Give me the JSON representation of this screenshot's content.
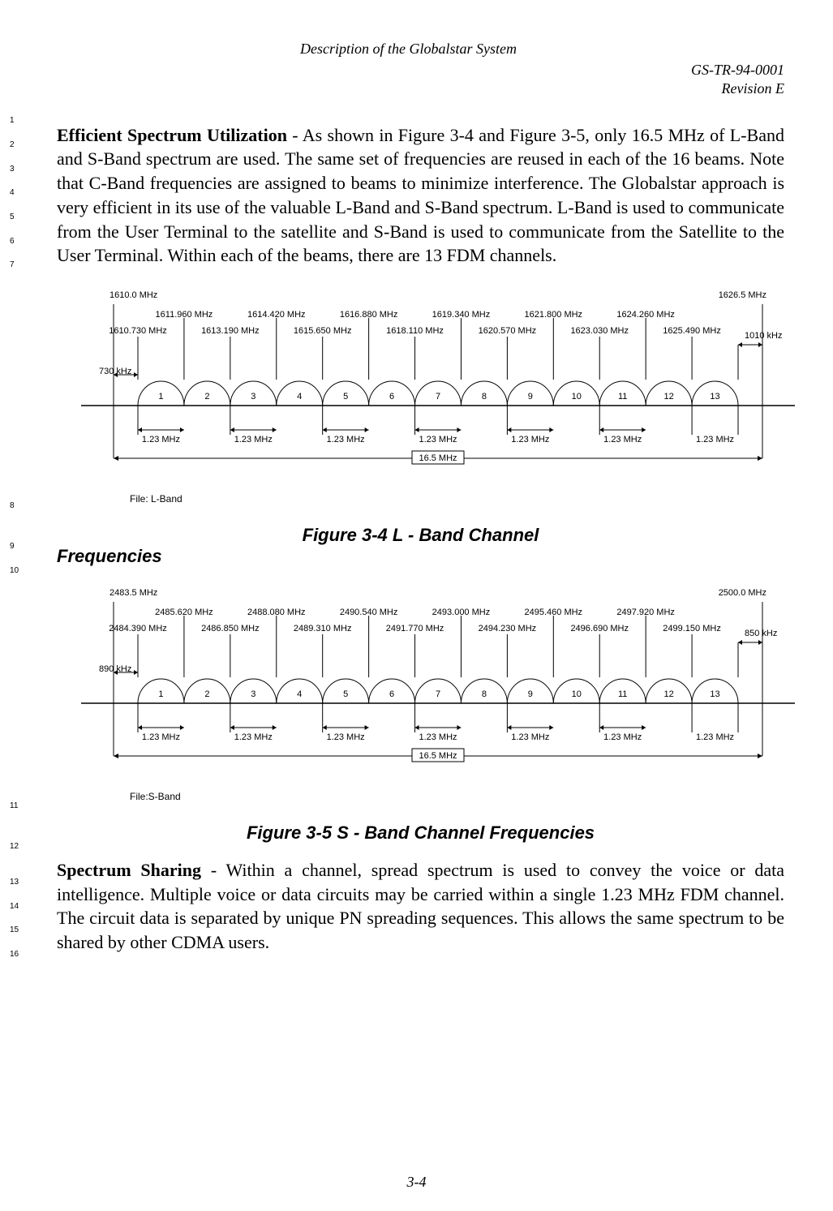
{
  "header": {
    "doc_title": "Description of the Globalstar System",
    "doc_id": "GS-TR-94-0001",
    "revision": "Revision E"
  },
  "line_numbers": {
    "para1": [
      "1",
      "2",
      "3",
      "4",
      "5",
      "6",
      "7"
    ],
    "fig1_end": "8",
    "fig1_caption": "9",
    "freq_line": "10",
    "fig2_end": "11",
    "fig2_caption": "12",
    "para2": [
      "13",
      "14",
      "15",
      "16"
    ]
  },
  "para1": {
    "bold": "Efficient Spectrum Utilization",
    "text": " - As shown in Figure 3-4 and Figure 3-5, only 16.5 MHz of L-Band and S-Band spectrum are used.  The same set of frequencies are reused in each of the 16 beams.  Note that C-Band frequencies are assigned to beams to minimize interference.  The Globalstar approach is very efficient in its use of the valuable L-Band and S-Band spectrum.  L-Band is used to communicate from the User Terminal to the satellite and S-Band is used to communicate from the Satellite to the User Terminal.  Within each of the beams, there are 13 FDM channels."
  },
  "figure1": {
    "caption_prefix": "Figure 3-4 L - Band Channel",
    "freq_suffix": "Frequencies",
    "file_label": "File: L-Band",
    "band_start": "1610.0 MHz",
    "band_end": "1626.5 MHz",
    "guard_left": "730 kHz",
    "guard_right": "1010 kHz",
    "total_width": "16.5 MHz",
    "channel_width": "1.23 MHz",
    "channels": [
      "1",
      "2",
      "3",
      "4",
      "5",
      "6",
      "7",
      "8",
      "9",
      "10",
      "11",
      "12",
      "13"
    ],
    "centers": [
      "1611.960 MHz",
      "1614.420 MHz",
      "1616.880 MHz",
      "1619.340 MHz",
      "1621.800 MHz",
      "1624.260 MHz"
    ],
    "edges": [
      "1610.730 MHz",
      "1613.190 MHz",
      "1615.650 MHz",
      "1618.110 MHz",
      "1620.570 MHz",
      "1623.030 MHz",
      "1625.490 MHz"
    ],
    "pair_labels": [
      "1.23 MHz",
      "1.23 MHz",
      "1.23 MHz",
      "1.23 MHz",
      "1.23 MHz",
      "1.23 MHz",
      "1.23 MHz"
    ]
  },
  "figure2": {
    "caption": "Figure 3-5 S - Band Channel Frequencies",
    "file_label": "File:S-Band",
    "band_start": "2483.5 MHz",
    "band_end": "2500.0 MHz",
    "guard_left": "890 kHz",
    "guard_right": "850 kHz",
    "total_width": "16.5 MHz",
    "channel_width": "1.23 MHz",
    "channels": [
      "1",
      "2",
      "3",
      "4",
      "5",
      "6",
      "7",
      "8",
      "9",
      "10",
      "11",
      "12",
      "13"
    ],
    "centers": [
      "2485.620 MHz",
      "2488.080 MHz",
      "2490.540 MHz",
      "2493.000 MHz",
      "2495.460 MHz",
      "2497.920 MHz"
    ],
    "edges": [
      "2484.390 MHz",
      "2486.850 MHz",
      "2489.310 MHz",
      "2491.770 MHz",
      "2494.230 MHz",
      "2496.690 MHz",
      "2499.150 MHz"
    ],
    "pair_labels": [
      "1.23 MHz",
      "1.23 MHz",
      "1.23 MHz",
      "1.23 MHz",
      "1.23 MHz",
      "1.23 MHz",
      "1.23 MHz"
    ]
  },
  "para2": {
    "bold": "Spectrum Sharing",
    "text": " - Within a channel, spread spectrum is used to convey the voice or data intelligence.  Multiple voice or data circuits may be carried within a single 1.23 MHz FDM channel.  The circuit data is separated by unique PN spreading sequences.  This allows the same spectrum to be shared by other CDMA users."
  },
  "page_number": "3-4",
  "style": {
    "line_color": "#000000",
    "background": "#ffffff",
    "box_fill": "#ffffff",
    "font_body": "Times New Roman",
    "font_labels": "Arial"
  }
}
